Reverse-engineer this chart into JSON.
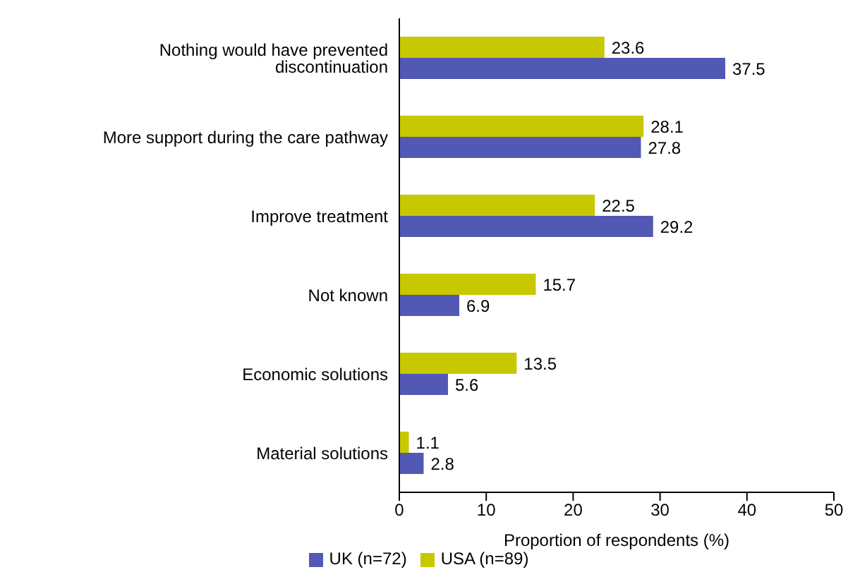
{
  "chart_data": {
    "type": "bar",
    "orientation": "horizontal",
    "xlabel": "Proportion of respondents (%)",
    "categories": [
      "Nothing would have prevented discontinuation",
      "More support during the care pathway",
      "Improve treatment",
      "Not known",
      "Economic solutions",
      "Material solutions"
    ],
    "series": [
      {
        "name": "USA (n=89)",
        "color": "#c8c800",
        "values": [
          23.6,
          28.1,
          22.5,
          15.7,
          13.5,
          1.1
        ]
      },
      {
        "name": "UK (n=72)",
        "color": "#5159b5",
        "values": [
          37.5,
          27.8,
          29.2,
          6.9,
          5.6,
          2.8
        ]
      }
    ],
    "xlim": [
      0,
      50
    ],
    "xticks": [
      0,
      10,
      20,
      30,
      40,
      50
    ],
    "data_labels": true,
    "grid": false,
    "legend": "bottom"
  }
}
